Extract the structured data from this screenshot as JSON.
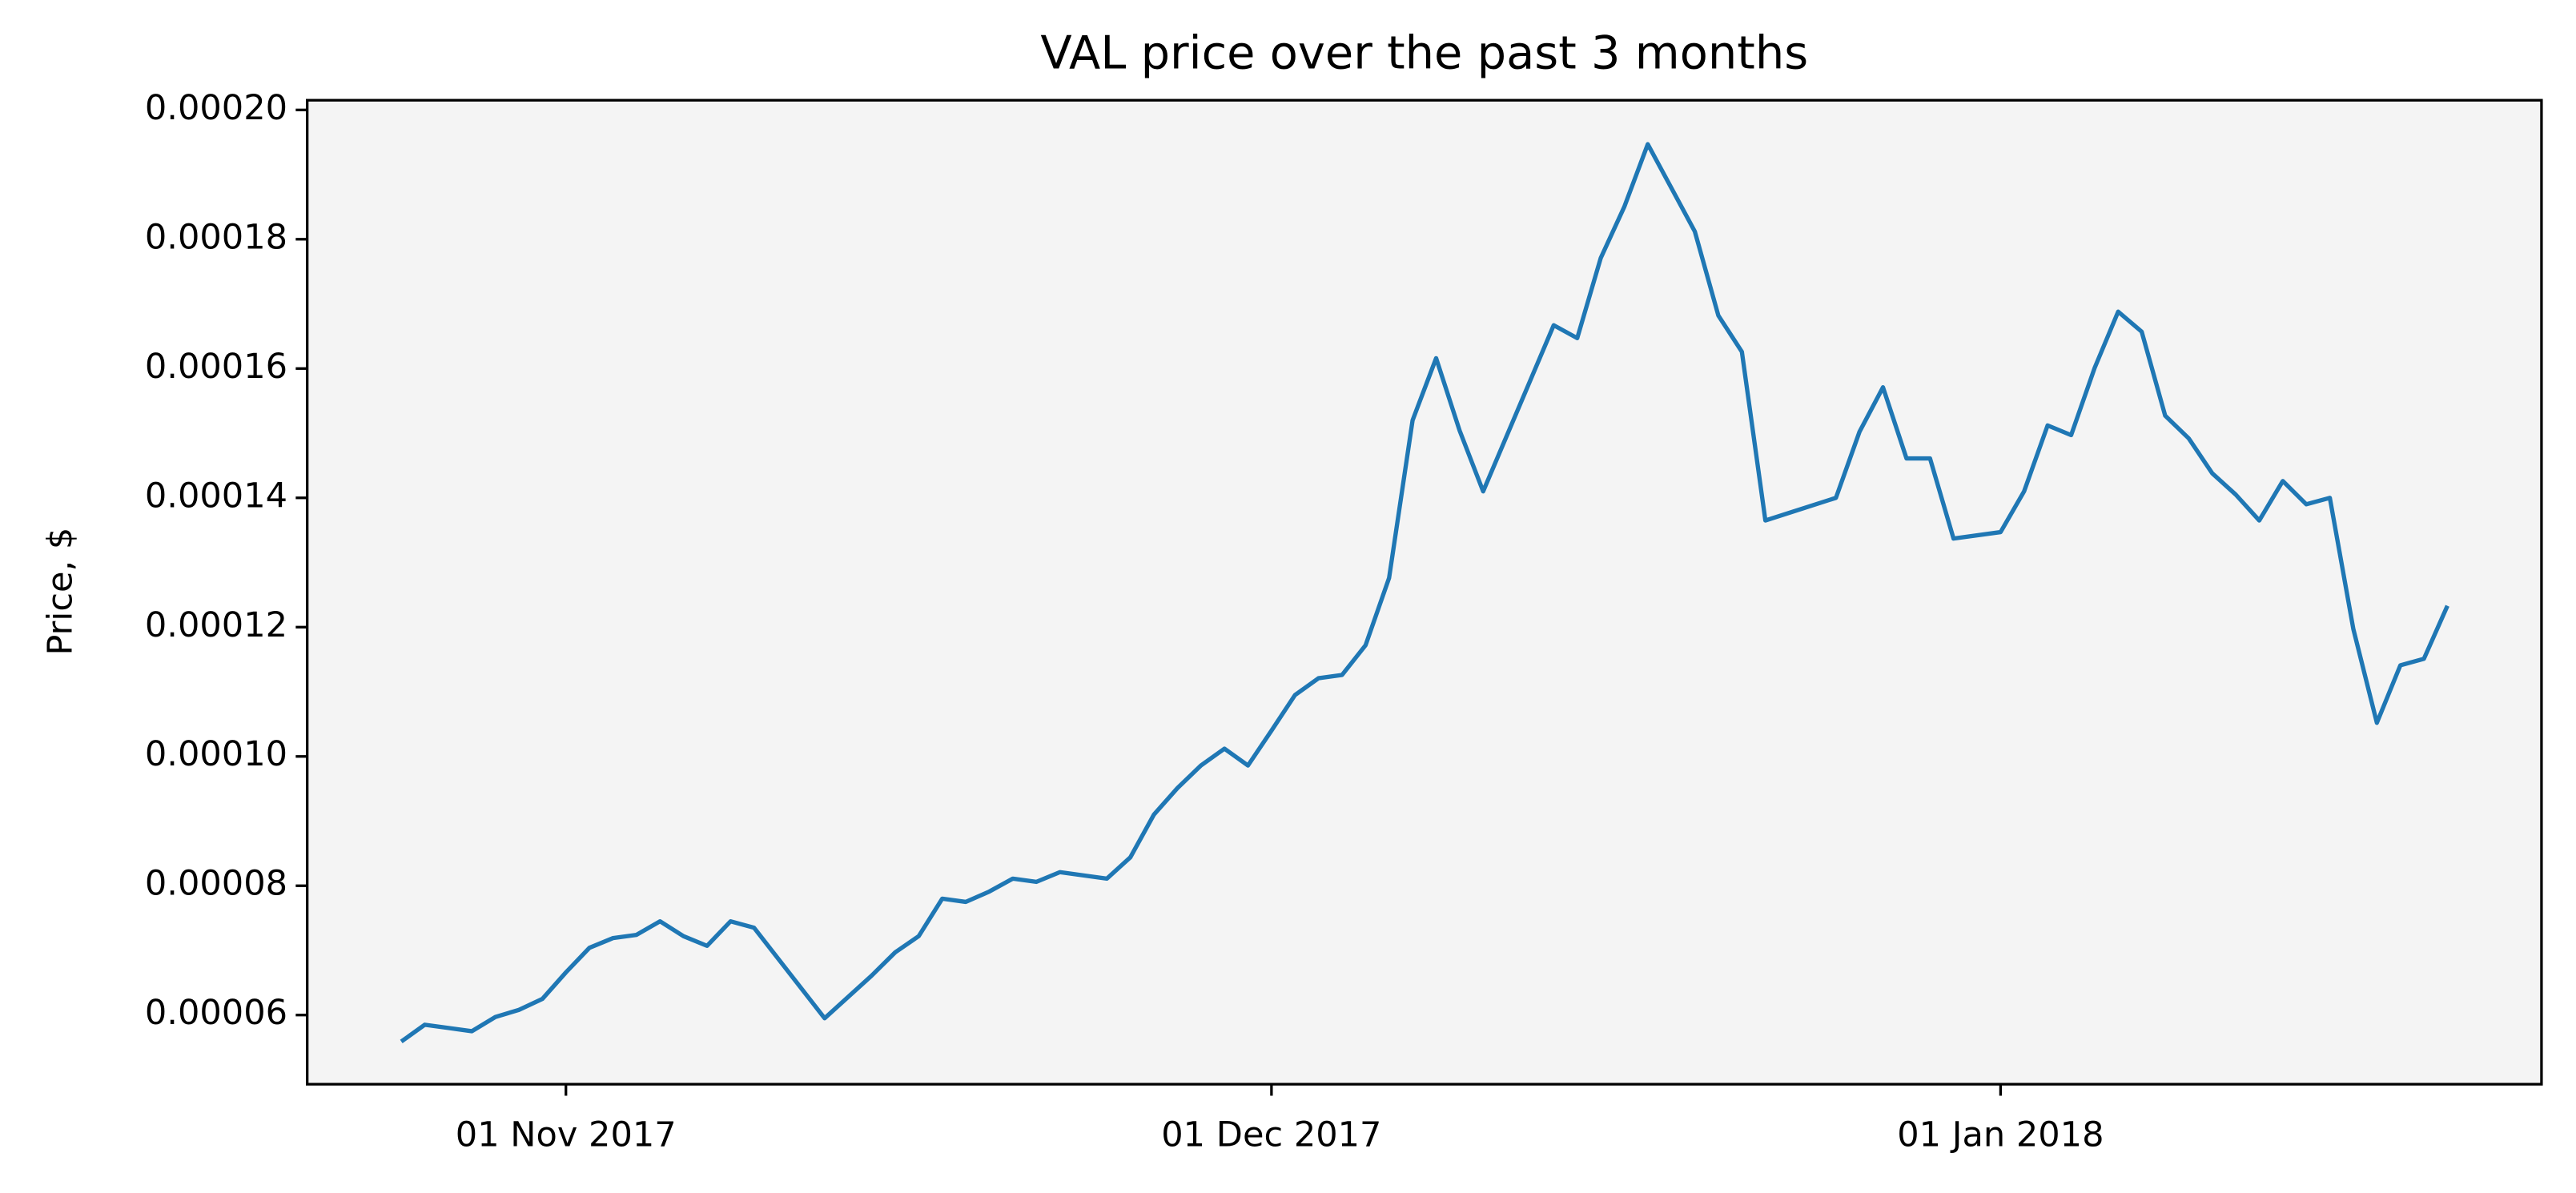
{
  "chart_data": {
    "type": "line",
    "title": "VAL price over the past 3 months",
    "ylabel": "Price, $",
    "x": [
      "2017-10-25",
      "2017-10-26",
      "2017-10-27",
      "2017-10-28",
      "2017-10-29",
      "2017-10-30",
      "2017-10-31",
      "2017-11-01",
      "2017-11-02",
      "2017-11-03",
      "2017-11-04",
      "2017-11-05",
      "2017-11-06",
      "2017-11-07",
      "2017-11-08",
      "2017-11-09",
      "2017-11-12",
      "2017-11-13",
      "2017-11-14",
      "2017-11-15",
      "2017-11-16",
      "2017-11-17",
      "2017-11-18",
      "2017-11-19",
      "2017-11-20",
      "2017-11-21",
      "2017-11-22",
      "2017-11-24",
      "2017-11-25",
      "2017-11-26",
      "2017-11-27",
      "2017-11-28",
      "2017-11-29",
      "2017-11-30",
      "2017-12-01",
      "2017-12-02",
      "2017-12-03",
      "2017-12-04",
      "2017-12-05",
      "2017-12-06",
      "2017-12-07",
      "2017-12-08",
      "2017-12-09",
      "2017-12-10",
      "2017-12-13",
      "2017-12-14",
      "2017-12-15",
      "2017-12-16",
      "2017-12-17",
      "2017-12-19",
      "2017-12-20",
      "2017-12-21",
      "2017-12-22",
      "2017-12-25",
      "2017-12-26",
      "2017-12-27",
      "2017-12-28",
      "2017-12-29",
      "2017-12-30",
      "2018-01-01",
      "2018-01-02",
      "2018-01-03",
      "2018-01-04",
      "2018-01-05",
      "2018-01-06",
      "2018-01-07",
      "2018-01-08",
      "2018-01-09",
      "2018-01-10",
      "2018-01-11",
      "2018-01-12",
      "2018-01-13",
      "2018-01-14",
      "2018-01-15",
      "2018-01-16",
      "2018-01-17",
      "2018-01-18",
      "2018-01-19",
      "2018-01-20"
    ],
    "series": [
      {
        "name": "VAL",
        "color": "#1f77b4",
        "values": [
          5.59e-05,
          5.85e-05,
          5.8e-05,
          5.75e-05,
          5.97e-05,
          6.08e-05,
          6.25e-05,
          6.66e-05,
          7.04e-05,
          7.19e-05,
          7.24e-05,
          7.45e-05,
          7.22e-05,
          7.07e-05,
          7.45e-05,
          7.35e-05,
          5.95e-05,
          6.28e-05,
          6.61e-05,
          6.97e-05,
          7.22e-05,
          7.8e-05,
          7.75e-05,
          7.91e-05,
          8.11e-05,
          8.06e-05,
          8.21e-05,
          8.11e-05,
          8.44e-05,
          9.1e-05,
          9.51e-05,
          9.86e-05,
          0.0001012,
          9.86e-05,
          0.000104,
          0.0001095,
          0.0001121,
          0.0001126,
          0.0001172,
          0.0001276,
          0.000152,
          0.0001616,
          0.0001504,
          0.000141,
          0.0001667,
          0.0001647,
          0.0001771,
          0.000185,
          0.0001947,
          0.0001812,
          0.0001682,
          0.0001626,
          0.0001365,
          0.00014,
          0.0001502,
          0.0001571,
          0.0001461,
          0.0001461,
          0.0001337,
          0.0001347,
          0.000141,
          0.0001512,
          0.0001497,
          0.0001601,
          0.0001688,
          0.0001657,
          0.0001527,
          0.0001492,
          0.0001438,
          0.0001405,
          0.0001365,
          0.0001426,
          0.000139,
          0.00014,
          0.0001197,
          0.0001052,
          0.0001141,
          0.0001151,
          0.0001233
        ]
      }
    ],
    "xlim": [
      "2017-10-21",
      "2018-01-24"
    ],
    "xticks": [
      {
        "value": "2017-11-01",
        "label": "01 Nov 2017"
      },
      {
        "value": "2017-12-01",
        "label": "01 Dec 2017"
      },
      {
        "value": "2018-01-01",
        "label": "01 Jan 2018"
      }
    ],
    "ylim": [
      4.93e-05,
      0.0002015
    ],
    "yticks": [
      6e-05,
      8e-05,
      {
        "value": 0.0001,
        "label": "0.00010"
      },
      0.00012,
      0.00014,
      0.00016,
      0.00018,
      {
        "value": 0.0002,
        "label": "0.00020"
      }
    ],
    "background": "#f4f4f4",
    "grid": false
  }
}
